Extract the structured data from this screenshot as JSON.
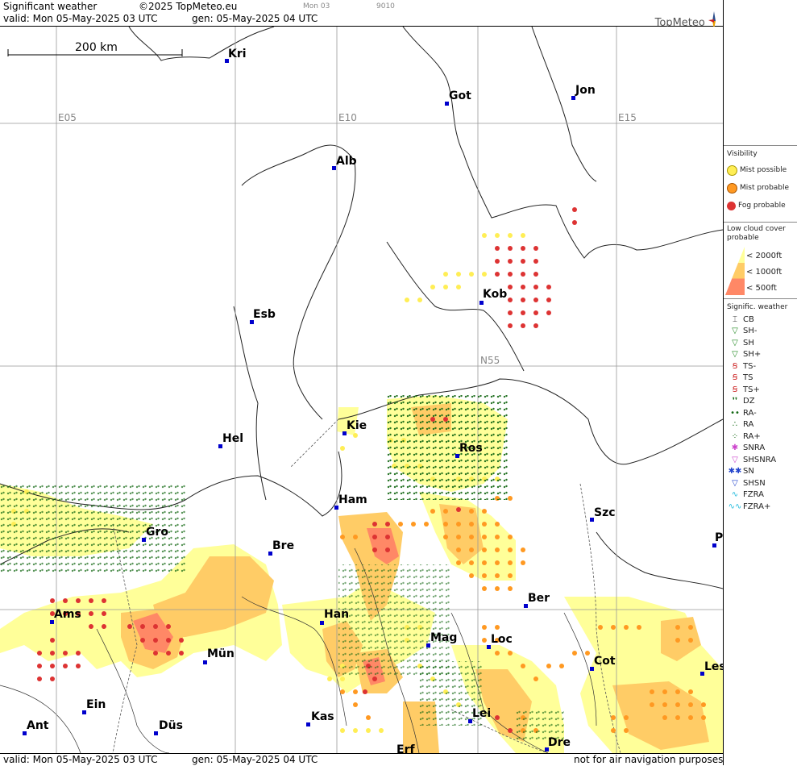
{
  "header": {
    "title": "Significant weather",
    "copyright": "©2025 TopMeteo.eu",
    "run_small": "Mon 03",
    "code_small": "9010",
    "valid": "valid:  Mon  05-May-2025  03 UTC",
    "generated": "gen: 05-May-2025 04 UTC",
    "logo": "TopMeteo"
  },
  "scale": {
    "label": "200 km"
  },
  "grid_labels": {
    "e05": "E05",
    "e10": "E10",
    "e15": "E15",
    "n55": "N55"
  },
  "cities": [
    {
      "id": "kri",
      "name": "Kri"
    },
    {
      "id": "got",
      "name": "Got"
    },
    {
      "id": "jon",
      "name": "Jon"
    },
    {
      "id": "alb",
      "name": "Alb"
    },
    {
      "id": "kob",
      "name": "Kob"
    },
    {
      "id": "esb",
      "name": "Esb"
    },
    {
      "id": "kie",
      "name": "Kie"
    },
    {
      "id": "hel",
      "name": "Hel"
    },
    {
      "id": "ros",
      "name": "Ros"
    },
    {
      "id": "ham",
      "name": "Ham"
    },
    {
      "id": "szc",
      "name": "Szc"
    },
    {
      "id": "gro",
      "name": "Gro"
    },
    {
      "id": "bre",
      "name": "Bre"
    },
    {
      "id": "ber",
      "name": "Ber"
    },
    {
      "id": "ams",
      "name": "Ams"
    },
    {
      "id": "han",
      "name": "Han"
    },
    {
      "id": "mag",
      "name": "Mag"
    },
    {
      "id": "loc",
      "name": "Loc"
    },
    {
      "id": "mun",
      "name": "Mün"
    },
    {
      "id": "cot",
      "name": "Cot"
    },
    {
      "id": "les",
      "name": "Les"
    },
    {
      "id": "ein",
      "name": "Ein"
    },
    {
      "id": "kas",
      "name": "Kas"
    },
    {
      "id": "lei",
      "name": "Lei"
    },
    {
      "id": "ant",
      "name": "Ant"
    },
    {
      "id": "dus",
      "name": "Düs"
    },
    {
      "id": "dre",
      "name": "Dre"
    },
    {
      "id": "erf",
      "name": "Erf"
    },
    {
      "id": "p",
      "name": "P"
    }
  ],
  "footer": {
    "valid": "valid:  Mon  05-May-2025  03 UTC",
    "generated": "gen: 05-May-2025 04 UTC",
    "disclaimer": "not for air navigation purposes"
  },
  "legend": {
    "visibility_title": "Visibility",
    "visibility": [
      {
        "label": "Mist possible",
        "color": "#ffee55"
      },
      {
        "label": "Mist probable",
        "color": "#ff9922"
      },
      {
        "label": "Fog probable",
        "color": "#dd3333"
      }
    ],
    "cloud_title": "Low cloud cover probable",
    "cloud": [
      {
        "label": "< 2000ft",
        "color": "#ffff99"
      },
      {
        "label": "< 1000ft",
        "color": "#ffcc66"
      },
      {
        "label": "<   500ft",
        "color": "#ff8866"
      }
    ],
    "sigwx_title": "Signific. weather",
    "sigwx": [
      {
        "label": "CB",
        "icon": "cb-icon",
        "color": "#444"
      },
      {
        "label": "SH-",
        "icon": "shower-light-icon",
        "color": "#228822"
      },
      {
        "label": "SH",
        "icon": "shower-icon",
        "color": "#228822"
      },
      {
        "label": "SH+",
        "icon": "shower-heavy-icon",
        "color": "#228822"
      },
      {
        "label": "TS-",
        "icon": "thunderstorm-light-icon",
        "color": "#cc2222"
      },
      {
        "label": "TS",
        "icon": "thunderstorm-icon",
        "color": "#cc2222"
      },
      {
        "label": "TS+",
        "icon": "thunderstorm-heavy-icon",
        "color": "#cc2222"
      },
      {
        "label": "DZ",
        "icon": "drizzle-icon",
        "color": "#116611"
      },
      {
        "label": "RA-",
        "icon": "rain-light-icon",
        "color": "#116611"
      },
      {
        "label": "RA",
        "icon": "rain-icon",
        "color": "#116611"
      },
      {
        "label": "RA+",
        "icon": "rain-heavy-icon",
        "color": "#116611"
      },
      {
        "label": "SNRA",
        "icon": "sleet-icon",
        "color": "#cc44cc"
      },
      {
        "label": "SHSNRA",
        "icon": "sleet-shower-icon",
        "color": "#cc44cc"
      },
      {
        "label": "SN",
        "icon": "snow-icon",
        "color": "#2244cc"
      },
      {
        "label": "SHSN",
        "icon": "snow-shower-icon",
        "color": "#2244cc"
      },
      {
        "label": "FZRA",
        "icon": "freezing-rain-icon",
        "color": "#22bbdd"
      },
      {
        "label": "FZRA+",
        "icon": "freezing-rain-heavy-icon",
        "color": "#22bbdd"
      }
    ]
  }
}
